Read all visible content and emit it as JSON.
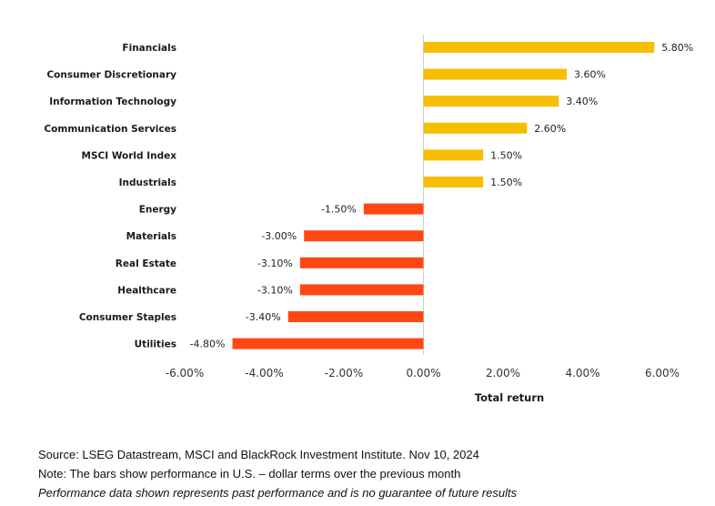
{
  "chart_data": {
    "type": "bar",
    "orientation": "horizontal",
    "categories": [
      "Financials",
      "Consumer Discretionary",
      "Information Technology",
      "Communication Services",
      "MSCI World Index",
      "Industrials",
      "Energy",
      "Materials",
      "Real Estate",
      "Healthcare",
      "Consumer Staples",
      "Utilities"
    ],
    "values": [
      5.8,
      3.6,
      3.4,
      2.6,
      1.5,
      1.5,
      -1.5,
      -3.0,
      -3.1,
      -3.1,
      -3.4,
      -4.8
    ],
    "value_labels": [
      "5.80%",
      "3.60%",
      "3.40%",
      "2.60%",
      "1.50%",
      "1.50%",
      "-1.50%",
      "-3.00%",
      "-3.10%",
      "-3.10%",
      "-3.40%",
      "-4.80%"
    ],
    "xlim": [
      -6,
      6
    ],
    "x_ticks": [
      -6,
      -4,
      -2,
      0,
      2,
      4,
      6
    ],
    "x_tick_labels": [
      "-6.00%",
      "-4.00%",
      "-2.00%",
      "0.00%",
      "2.00%",
      "4.00%",
      "6.00%"
    ],
    "xlabel": "Total return",
    "title": "",
    "grid": false,
    "colors": {
      "positive": "#F5BE00",
      "negative": "#FF4713",
      "zero_line": "#d0d0d0"
    }
  },
  "footnotes": {
    "source": "Source: LSEG Datastream, MSCI and BlackRock Investment Institute. Nov 10, 2024",
    "note": "Note: The bars show performance in U.S. – dollar terms over the previous month",
    "disclaimer": "Performance data shown represents past performance and is no guarantee of future results"
  }
}
